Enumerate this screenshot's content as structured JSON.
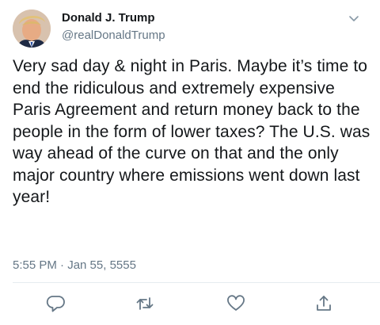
{
  "tweet": {
    "display_name": "Donald J. Trump",
    "handle": "@realDonaldTrump",
    "text": "Very sad day & night in Paris. Maybe it’s time to end the ridiculous and extremely expensive Paris Agreement and return money back to the people in the form of lower taxes? The U.S. was way ahead of the curve on that and the only major country where emissions went down last year!",
    "timestamp": "5:55 PM · Jan 55, 5555"
  },
  "icons": {
    "menu": "chevron-down-icon",
    "reply": "reply-icon",
    "retweet": "retweet-icon",
    "like": "like-icon",
    "share": "share-icon"
  },
  "colors": {
    "text": "#14171a",
    "secondary": "#657786",
    "divider": "#e6ecf0"
  }
}
